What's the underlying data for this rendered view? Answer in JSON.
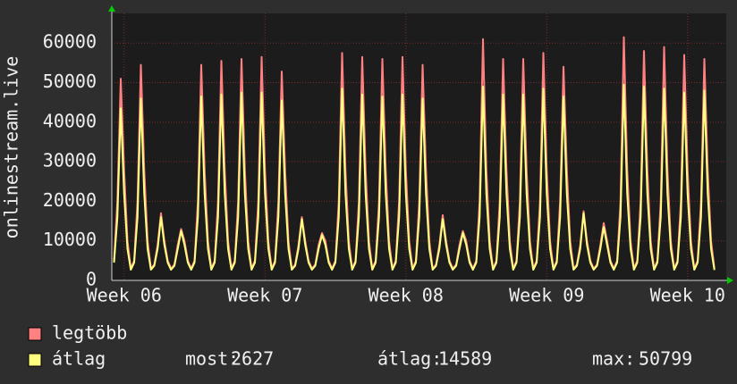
{
  "chart_data": {
    "type": "line",
    "y_label": "onlinestream.live",
    "categories": [
      null,
      null,
      null,
      "Week 06",
      null,
      null,
      null,
      null,
      null,
      null,
      null,
      null,
      null,
      null,
      null,
      null,
      null,
      null,
      null,
      null,
      null,
      null,
      null,
      null,
      null,
      null,
      null,
      null,
      null,
      null,
      null,
      null,
      null,
      null,
      null,
      null,
      null,
      null,
      null,
      null,
      null,
      null,
      null,
      null,
      null,
      "Week 07",
      null,
      null,
      null,
      null,
      null,
      null,
      null,
      null,
      null,
      null,
      null,
      null,
      null,
      null,
      null,
      null,
      null,
      null,
      null,
      null,
      null,
      null,
      null,
      null,
      null,
      null,
      null,
      null,
      null,
      null,
      null,
      null,
      null,
      null,
      null,
      null,
      null,
      null,
      null,
      null,
      null,
      "Week 08",
      null,
      null,
      null,
      null,
      null,
      null,
      null,
      null,
      null,
      null,
      null,
      null,
      null,
      null,
      null,
      null,
      null,
      null,
      null,
      null,
      null,
      null,
      null,
      null,
      null,
      null,
      null,
      null,
      null,
      null,
      null,
      null,
      null,
      null,
      null,
      null,
      null,
      null,
      null,
      null,
      null,
      "Week 09",
      null,
      null,
      null,
      null,
      null,
      null,
      null,
      null,
      null,
      null,
      null,
      null,
      null,
      null,
      null,
      null,
      null,
      null,
      null,
      null,
      null,
      null,
      null,
      null,
      null,
      null,
      null,
      null,
      null,
      null,
      null,
      null,
      null,
      null,
      null,
      null,
      null,
      null,
      null,
      null,
      null,
      "Week 10",
      null,
      null,
      null,
      null,
      null,
      null,
      null,
      null
    ],
    "series": [
      {
        "name": "legtöbb",
        "color": "#ff8080",
        "values": [
          5000,
          20000,
          51000,
          28000,
          10000,
          3000,
          5000,
          20000,
          54500,
          28000,
          10000,
          3000,
          4000,
          9000,
          17000,
          10000,
          5000,
          3000,
          4000,
          9000,
          13000,
          10000,
          5000,
          3000,
          5000,
          20000,
          54500,
          28000,
          10000,
          3000,
          5000,
          20000,
          55500,
          28000,
          10000,
          3000,
          5000,
          20000,
          56000,
          28000,
          10000,
          3000,
          5000,
          20000,
          56500,
          28000,
          10000,
          3000,
          5000,
          20000,
          52800,
          28000,
          10000,
          3000,
          4000,
          9000,
          16000,
          10000,
          5000,
          3000,
          4000,
          9000,
          12000,
          10000,
          5000,
          3000,
          5000,
          20000,
          57500,
          28000,
          10000,
          3000,
          5000,
          20000,
          56500,
          28000,
          10000,
          3000,
          5000,
          20000,
          56000,
          28000,
          10000,
          3000,
          5000,
          20000,
          56500,
          28000,
          10000,
          3000,
          5000,
          20000,
          54500,
          28000,
          10000,
          3000,
          4000,
          9000,
          16500,
          10000,
          5000,
          3000,
          4000,
          9000,
          12500,
          10000,
          5000,
          3000,
          5000,
          20000,
          61000,
          28000,
          10000,
          3000,
          5000,
          20000,
          56000,
          28000,
          10000,
          3000,
          5000,
          20000,
          56000,
          28000,
          10000,
          3000,
          5000,
          20000,
          57500,
          28000,
          10000,
          3000,
          5000,
          20000,
          54000,
          28000,
          10000,
          3000,
          4000,
          9000,
          17500,
          10000,
          5000,
          3000,
          4000,
          9000,
          14500,
          10000,
          5000,
          3000,
          5000,
          20000,
          61500,
          28000,
          10000,
          3000,
          5000,
          20000,
          58000,
          28000,
          10000,
          3000,
          5000,
          20000,
          59000,
          28000,
          10000,
          3000,
          5000,
          20000,
          57000,
          28000,
          10000,
          3000,
          5000,
          20000,
          56000,
          28000,
          10000,
          3000
        ]
      },
      {
        "name": "átlag",
        "color": "#ffff80",
        "values": [
          4500,
          16000,
          43500,
          22000,
          8000,
          2700,
          4500,
          16000,
          46000,
          22000,
          8000,
          2700,
          3700,
          8000,
          16000,
          9000,
          4500,
          2700,
          3700,
          8000,
          12500,
          9000,
          4500,
          2700,
          4500,
          16000,
          46500,
          22000,
          8000,
          2700,
          4500,
          16000,
          47000,
          22000,
          8000,
          2700,
          4500,
          16000,
          47500,
          22000,
          8000,
          2700,
          4500,
          16000,
          47500,
          22000,
          8000,
          2700,
          4500,
          16000,
          45500,
          22000,
          8000,
          2700,
          3700,
          8000,
          15500,
          9000,
          4500,
          2700,
          3700,
          8000,
          11500,
          9000,
          4500,
          2700,
          4500,
          16000,
          48500,
          22000,
          8000,
          2700,
          4500,
          16000,
          47000,
          22000,
          8000,
          2700,
          4500,
          16000,
          46500,
          22000,
          8000,
          2700,
          4500,
          16000,
          47000,
          22000,
          8000,
          2700,
          4500,
          16000,
          46000,
          22000,
          8000,
          2700,
          3700,
          8000,
          15500,
          9000,
          4500,
          2700,
          3700,
          8000,
          12000,
          9000,
          4500,
          2700,
          4500,
          16000,
          49000,
          22000,
          8000,
          2700,
          4500,
          16000,
          47000,
          22000,
          8000,
          2700,
          4500,
          16000,
          47000,
          22000,
          8000,
          2700,
          4500,
          16000,
          48500,
          22000,
          8000,
          2700,
          4500,
          16000,
          46500,
          22000,
          8000,
          2700,
          3700,
          8000,
          17000,
          9000,
          4500,
          2700,
          3700,
          8000,
          13500,
          9000,
          4500,
          2700,
          4500,
          16000,
          49500,
          22000,
          8000,
          2700,
          4500,
          16000,
          49000,
          22000,
          8000,
          2700,
          4500,
          16000,
          48500,
          22000,
          8000,
          2700,
          4500,
          16000,
          47500,
          22000,
          8000,
          2700,
          4500,
          16000,
          48000,
          22000,
          8000,
          2627
        ]
      }
    ],
    "stats": [
      {
        "label": "most:",
        "value": 2627
      },
      {
        "label": "átlag:",
        "value": 14589
      },
      {
        "label": "max:",
        "value": 50799
      }
    ],
    "ylim": [
      0,
      67500
    ],
    "yticks": [
      0,
      10000,
      20000,
      30000,
      40000,
      50000,
      60000
    ],
    "grid": true
  }
}
